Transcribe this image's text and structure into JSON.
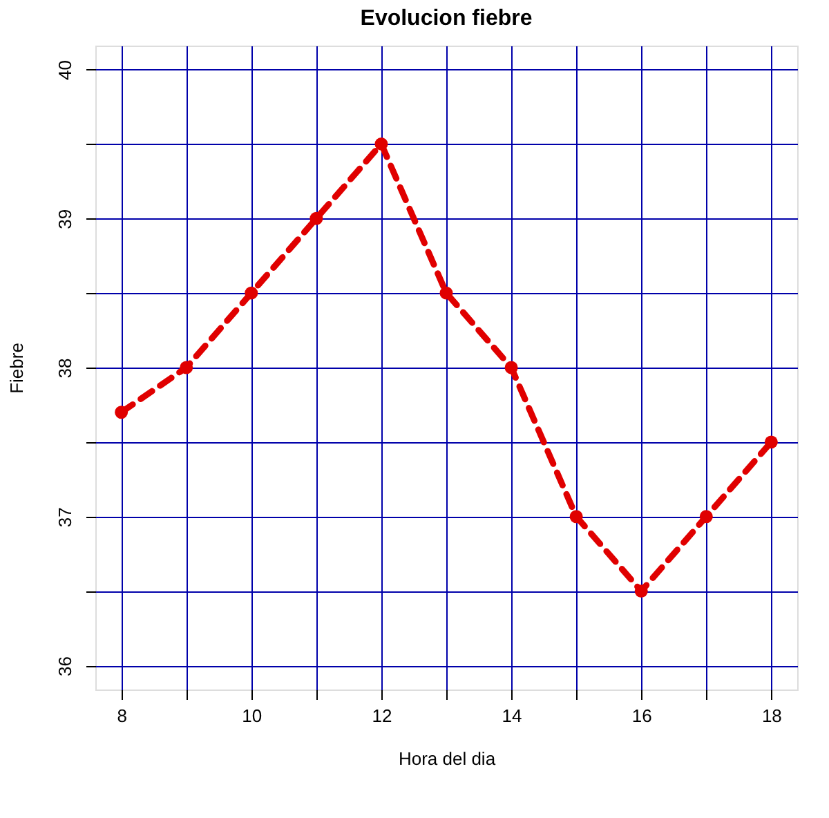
{
  "chart_data": {
    "type": "line",
    "title": "Evolucion fiebre",
    "xlabel": "Hora del dia",
    "ylabel": "Fiebre",
    "x": [
      8,
      9,
      10,
      11,
      12,
      13,
      14,
      15,
      16,
      17,
      18
    ],
    "series": [
      {
        "color": "#e00000",
        "values": [
          37.7,
          38,
          38.5,
          39,
          39.5,
          38.5,
          38,
          37,
          36.5,
          37,
          37.5
        ]
      }
    ],
    "xlim": [
      7.6,
      18.4
    ],
    "ylim": [
      35.84,
      40.16
    ],
    "xticks": [
      8,
      {
        "value": 9,
        "label": null
      },
      10,
      {
        "value": 11,
        "label": null
      },
      12,
      {
        "value": 13,
        "label": null
      },
      14,
      {
        "value": 15,
        "label": null
      },
      16,
      {
        "value": 17,
        "label": null
      },
      18
    ],
    "yticks": [
      36,
      {
        "value": 36.5,
        "label": null
      },
      37,
      {
        "value": 37.5,
        "label": null
      },
      38,
      {
        "value": 38.5,
        "label": null
      },
      39,
      {
        "value": 39.5,
        "label": null
      },
      40
    ],
    "grid": true,
    "marker": "circle",
    "line_style": "dashed",
    "legend": false
  }
}
